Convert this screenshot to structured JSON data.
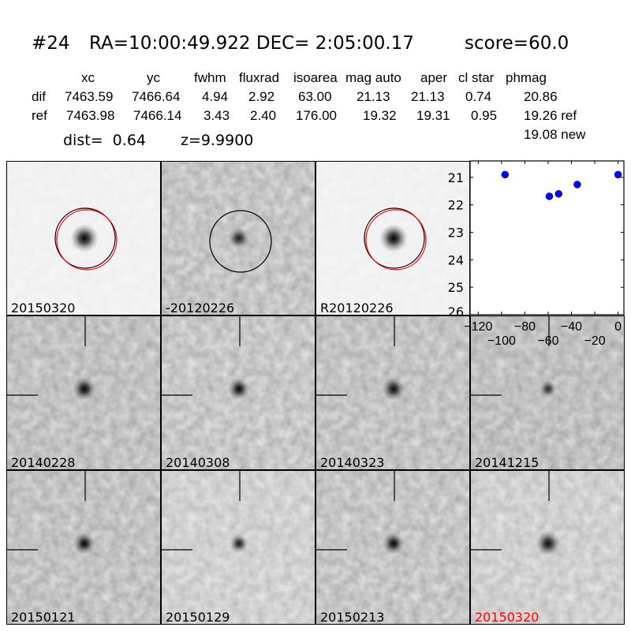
{
  "header": {
    "id": "#24",
    "coords": "RA=10:00:49.922 DEC= 2:05:00.17",
    "score": "score=60.0"
  },
  "table": {
    "columns": [
      "xc",
      "yc",
      "fwhm",
      "fluxrad",
      "isoarea",
      "mag auto",
      "aper",
      "cl star",
      "phmag"
    ],
    "rows": [
      {
        "label": "dif",
        "values": [
          "7463.59",
          "7466.64",
          "4.94",
          "2.92",
          "63.00",
          "21.13",
          "21.13",
          "0.74",
          "20.86"
        ]
      },
      {
        "label": "ref",
        "values": [
          "7463.98",
          "7466.14",
          "3.43",
          "2.40",
          "176.00",
          "19.32",
          "19.31",
          "0.95",
          "19.26 ref"
        ]
      }
    ],
    "extra_phmag": "19.08 new",
    "dist": "dist=  0.64",
    "z": "z=9.9900"
  },
  "panels": [
    {
      "label": "20150320",
      "overlay": "circles-black-red"
    },
    {
      "label": "-20120226",
      "overlay": "circle-black"
    },
    {
      "label": "R20120226",
      "overlay": "circles-black-red"
    },
    {
      "label": "20140228",
      "overlay": "crosshair"
    },
    {
      "label": "20140308",
      "overlay": "crosshair"
    },
    {
      "label": "20140323",
      "overlay": "crosshair"
    },
    {
      "label": "20141215",
      "overlay": "crosshair"
    },
    {
      "label": "20150121",
      "overlay": "crosshair"
    },
    {
      "label": "20150129",
      "overlay": "crosshair"
    },
    {
      "label": "20150213",
      "overlay": "crosshair"
    },
    {
      "label": "20150320",
      "overlay": "crosshair",
      "label_color": "#ff0000"
    }
  ],
  "chart_data": {
    "type": "scatter",
    "x": [
      -97,
      -59,
      -51,
      -35,
      0
    ],
    "y": [
      20.9,
      21.69,
      21.6,
      21.26,
      20.9
    ],
    "xlim": [
      -127,
      5
    ],
    "ylim": [
      26,
      20.4
    ],
    "y_inverted": true,
    "xticks": [
      "−120",
      "−100",
      "−80",
      "−60",
      "−40",
      "−20",
      "0"
    ],
    "xtick_values": [
      -120,
      -100,
      -80,
      -60,
      -40,
      -20,
      0
    ],
    "yticks": [
      "21",
      "22",
      "23",
      "24",
      "25",
      "26"
    ],
    "ytick_values": [
      21,
      22,
      23,
      24,
      25,
      26
    ],
    "marker_color": "#0000ff",
    "grid": false
  }
}
